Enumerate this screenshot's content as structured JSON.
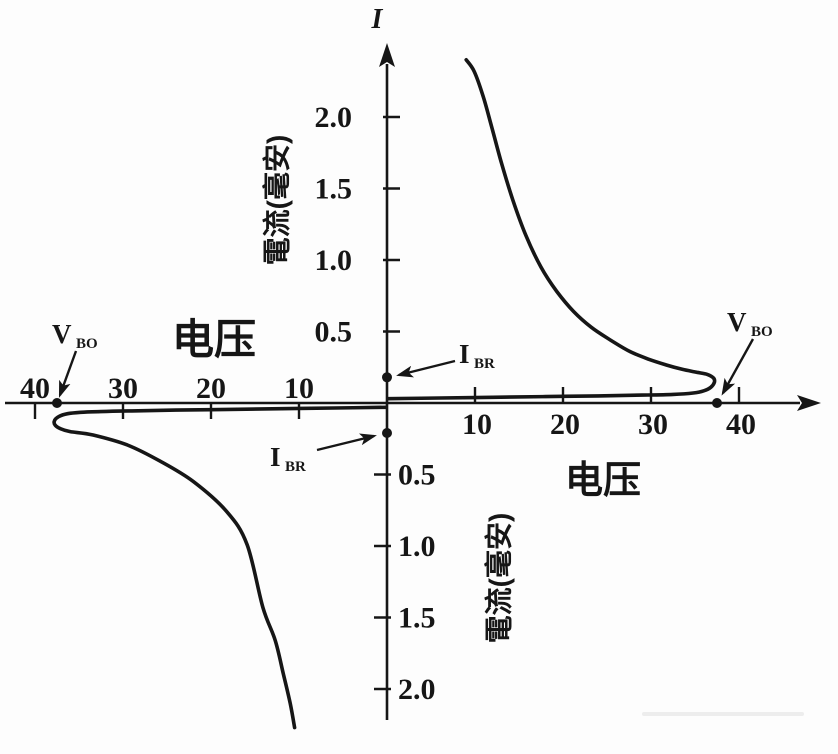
{
  "figure": {
    "background": "#fdfdfd",
    "ink_color": "#161616"
  },
  "chart_data": {
    "type": "line",
    "title": "",
    "x_axis": {
      "label_negative": "电压",
      "label_positive": "电压",
      "tick_labels_negative": [
        "40",
        "30",
        "20",
        "10"
      ],
      "tick_values_negative": [
        -40,
        -30,
        -20,
        -10
      ],
      "tick_labels_positive": [
        "10",
        "20",
        "30",
        "40"
      ],
      "tick_values_positive": [
        10,
        20,
        30,
        40
      ],
      "xlim": [
        -45,
        49
      ]
    },
    "y_axis": {
      "title": "I",
      "label_upper": "電流(毫安)",
      "label_lower": "電流(毫安)",
      "tick_labels_upper": [
        "2.0",
        "1.5",
        "1.0",
        "0.5"
      ],
      "tick_values_upper": [
        2.0,
        1.5,
        1.0,
        0.5
      ],
      "tick_labels_lower": [
        "0.5",
        "1.0",
        "1.5",
        "2.0"
      ],
      "tick_values_lower": [
        -0.5,
        -1.0,
        -1.5,
        -2.0
      ],
      "ylim": [
        -2.4,
        2.5
      ]
    },
    "grid": false,
    "legend": false,
    "series": [
      {
        "name": "positive-breakover-branch",
        "points": [
          [
            0.1,
            0.03
          ],
          [
            6,
            0.035
          ],
          [
            12,
            0.04
          ],
          [
            18,
            0.045
          ],
          [
            24,
            0.05
          ],
          [
            29,
            0.055
          ],
          [
            32.5,
            0.06
          ],
          [
            34.8,
            0.07
          ],
          [
            36,
            0.085
          ],
          [
            36.8,
            0.11
          ],
          [
            37.2,
            0.145
          ],
          [
            37.1,
            0.175
          ],
          [
            36.4,
            0.2
          ],
          [
            35.2,
            0.215
          ],
          [
            33.6,
            0.235
          ],
          [
            31.8,
            0.265
          ],
          [
            29.8,
            0.305
          ],
          [
            27.6,
            0.36
          ],
          [
            25.4,
            0.44
          ],
          [
            23.2,
            0.53
          ],
          [
            21.2,
            0.64
          ],
          [
            19.3,
            0.78
          ],
          [
            17.5,
            0.95
          ],
          [
            15.8,
            1.17
          ],
          [
            14.3,
            1.42
          ],
          [
            13,
            1.68
          ],
          [
            11.9,
            1.93
          ],
          [
            10.9,
            2.15
          ],
          [
            9.9,
            2.32
          ],
          [
            9,
            2.4
          ]
        ]
      },
      {
        "name": "negative-breakover-branch",
        "points": [
          [
            -0.1,
            -0.03
          ],
          [
            -6,
            -0.035
          ],
          [
            -12,
            -0.04
          ],
          [
            -18,
            -0.045
          ],
          [
            -24,
            -0.05
          ],
          [
            -29,
            -0.055
          ],
          [
            -32.5,
            -0.06
          ],
          [
            -34.8,
            -0.065
          ],
          [
            -36.3,
            -0.075
          ],
          [
            -37.3,
            -0.095
          ],
          [
            -37.8,
            -0.125
          ],
          [
            -37.7,
            -0.155
          ],
          [
            -37.1,
            -0.18
          ],
          [
            -36,
            -0.2
          ],
          [
            -33.4,
            -0.224
          ],
          [
            -29.5,
            -0.294
          ],
          [
            -25.8,
            -0.406
          ],
          [
            -22,
            -0.55
          ],
          [
            -18.2,
            -0.76
          ],
          [
            -15.9,
            -0.99
          ],
          [
            -14.1,
            -1.43
          ],
          [
            -12.7,
            -1.66
          ],
          [
            -11.8,
            -1.89
          ],
          [
            -11,
            -2.1
          ],
          [
            -10.5,
            -2.27
          ]
        ]
      }
    ],
    "markers": [
      {
        "name": "vbo-positive-point",
        "v": 37.5,
        "i": 0
      },
      {
        "name": "vbo-negative-point",
        "v": -37.5,
        "i": 0
      },
      {
        "name": "ibr-upper-point",
        "v": 0,
        "i": 0.18
      },
      {
        "name": "ibr-lower-point",
        "v": 0,
        "i": -0.21
      }
    ],
    "annotations": {
      "vbo": {
        "main": "V",
        "sub": "BO"
      },
      "ibr": {
        "main": "I",
        "sub": "BR"
      }
    }
  }
}
